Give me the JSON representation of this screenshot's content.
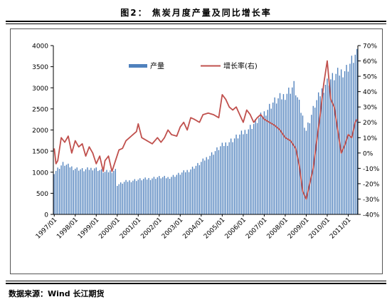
{
  "figure": {
    "title": "图2： 焦炭月度产量及同比增长率",
    "source": "数据来源：Wind  长江期货"
  },
  "chart_data": {
    "type": "bar+line",
    "title": "",
    "x_tick_labels": [
      "1997/01",
      "1998/01",
      "1999/01",
      "2000/01",
      "2001/01",
      "2002/01",
      "2003/01",
      "2004/01",
      "2005/01",
      "2006/01",
      "2007/01",
      "2008/01",
      "2009/01",
      "2010/01",
      "2011/01"
    ],
    "y_left": {
      "min": 0,
      "max": 4000,
      "step": 500,
      "ticks": [
        "0",
        "500",
        "1000",
        "1500",
        "2000",
        "2500",
        "3000",
        "3500",
        "4000"
      ]
    },
    "y_right": {
      "min": -40,
      "max": 70,
      "step": 10,
      "ticks": [
        "-40%",
        "-30%",
        "-20%",
        "-10%",
        "0%",
        "10%",
        "20%",
        "30%",
        "40%",
        "50%",
        "60%",
        "70%"
      ]
    },
    "legend": {
      "position": "top",
      "entries": [
        "产量",
        "增长率(右)"
      ]
    },
    "colors": {
      "production_bar": "#4f81bd",
      "growth_line": "#c0504d"
    },
    "series": [
      {
        "name": "产量",
        "type": "bar",
        "axis": "left",
        "anchors": [
          [
            "1997-01",
            1000
          ],
          [
            "1997-06",
            1200
          ],
          [
            "1997-12",
            1100
          ],
          [
            "1998-06",
            1050
          ],
          [
            "1998-12",
            1100
          ],
          [
            "1999-06",
            1000
          ],
          [
            "1999-12",
            1050
          ],
          [
            "2000-01",
            700
          ],
          [
            "2000-06",
            780
          ],
          [
            "2000-12",
            820
          ],
          [
            "2001-06",
            840
          ],
          [
            "2001-12",
            880
          ],
          [
            "2002-06",
            870
          ],
          [
            "2002-12",
            950
          ],
          [
            "2003-06",
            1050
          ],
          [
            "2003-12",
            1200
          ],
          [
            "2004-06",
            1400
          ],
          [
            "2004-12",
            1600
          ],
          [
            "2005-06",
            1750
          ],
          [
            "2005-12",
            1900
          ],
          [
            "2006-06",
            2100
          ],
          [
            "2006-12",
            2350
          ],
          [
            "2007-06",
            2650
          ],
          [
            "2007-12",
            2800
          ],
          [
            "2008-06",
            3050
          ],
          [
            "2008-11",
            2300
          ],
          [
            "2009-01",
            2000
          ],
          [
            "2009-06",
            2600
          ],
          [
            "2009-12",
            3100
          ],
          [
            "2010-06",
            3300
          ],
          [
            "2010-12",
            3450
          ],
          [
            "2011-05",
            3750
          ]
        ]
      },
      {
        "name": "增长率(右)",
        "type": "line",
        "axis": "right",
        "anchors": [
          [
            "1997-01",
            3
          ],
          [
            "1997-02",
            -7
          ],
          [
            "1997-03",
            -5
          ],
          [
            "1997-05",
            10
          ],
          [
            "1997-07",
            7
          ],
          [
            "1997-09",
            11
          ],
          [
            "1997-11",
            0
          ],
          [
            "1998-01",
            8
          ],
          [
            "1998-03",
            4
          ],
          [
            "1998-05",
            6
          ],
          [
            "1998-07",
            -2
          ],
          [
            "1998-09",
            4
          ],
          [
            "1998-11",
            0
          ],
          [
            "1999-01",
            -7
          ],
          [
            "1999-03",
            -2
          ],
          [
            "1999-05",
            -12
          ],
          [
            "1999-06",
            -5
          ],
          [
            "1999-08",
            -2
          ],
          [
            "1999-10",
            -12
          ],
          [
            "1999-12",
            -5
          ],
          [
            "2000-02",
            2
          ],
          [
            "2000-04",
            3
          ],
          [
            "2000-06",
            8
          ],
          [
            "2000-08",
            10
          ],
          [
            "2000-10",
            12
          ],
          [
            "2000-12",
            14
          ],
          [
            "2001-01",
            19
          ],
          [
            "2001-03",
            10
          ],
          [
            "2001-06",
            8
          ],
          [
            "2001-09",
            6
          ],
          [
            "2001-12",
            10
          ],
          [
            "2002-02",
            7
          ],
          [
            "2002-04",
            10
          ],
          [
            "2002-06",
            15
          ],
          [
            "2002-08",
            12
          ],
          [
            "2002-11",
            11
          ],
          [
            "2003-01",
            17
          ],
          [
            "2003-03",
            20
          ],
          [
            "2003-05",
            15
          ],
          [
            "2003-07",
            23
          ],
          [
            "2003-09",
            22
          ],
          [
            "2003-12",
            20
          ],
          [
            "2004-02",
            25
          ],
          [
            "2004-05",
            26
          ],
          [
            "2004-08",
            25
          ],
          [
            "2004-11",
            23
          ],
          [
            "2005-01",
            38
          ],
          [
            "2005-03",
            35
          ],
          [
            "2005-05",
            30
          ],
          [
            "2005-07",
            28
          ],
          [
            "2005-09",
            30
          ],
          [
            "2005-11",
            25
          ],
          [
            "2006-01",
            20
          ],
          [
            "2006-03",
            28
          ],
          [
            "2006-05",
            25
          ],
          [
            "2006-07",
            20
          ],
          [
            "2006-09",
            23
          ],
          [
            "2006-11",
            25
          ],
          [
            "2007-01",
            22
          ],
          [
            "2007-04",
            20
          ],
          [
            "2007-07",
            18
          ],
          [
            "2007-10",
            15
          ],
          [
            "2008-01",
            10
          ],
          [
            "2008-04",
            8
          ],
          [
            "2008-07",
            3
          ],
          [
            "2008-09",
            -8
          ],
          [
            "2008-11",
            -25
          ],
          [
            "2009-01",
            -30
          ],
          [
            "2009-03",
            -20
          ],
          [
            "2009-05",
            -10
          ],
          [
            "2009-07",
            8
          ],
          [
            "2009-09",
            25
          ],
          [
            "2009-11",
            45
          ],
          [
            "2010-01",
            60
          ],
          [
            "2010-03",
            35
          ],
          [
            "2010-05",
            30
          ],
          [
            "2010-07",
            15
          ],
          [
            "2010-09",
            0
          ],
          [
            "2010-11",
            5
          ],
          [
            "2011-01",
            12
          ],
          [
            "2011-03",
            10
          ],
          [
            "2011-05",
            20
          ],
          [
            "2011-06",
            22
          ]
        ]
      }
    ]
  }
}
